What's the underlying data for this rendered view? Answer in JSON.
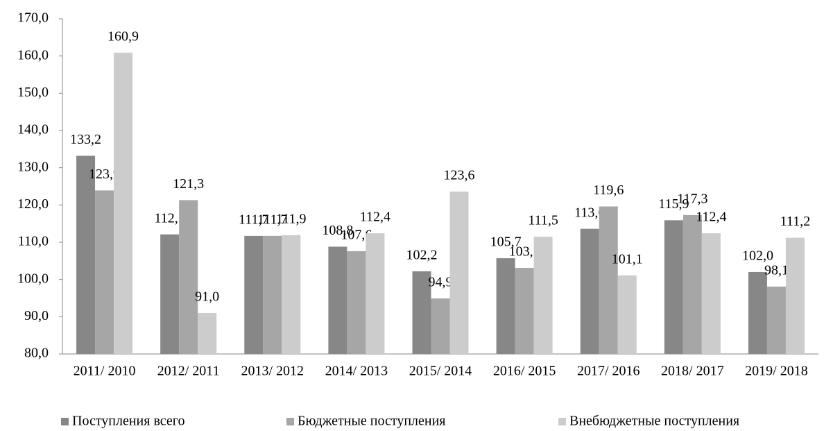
{
  "chart_data": {
    "type": "bar",
    "categories": [
      "2011/ 2010",
      "2012/ 2011",
      "2013/ 2012",
      "2014/ 2013",
      "2015/ 2014",
      "2016/ 2015",
      "2017/ 2016",
      "2018/ 2017",
      "2019/ 2018"
    ],
    "series": [
      {
        "name": "Поступления всего",
        "color": "#878787",
        "values": [
          133.2,
          112.1,
          111.7,
          108.8,
          102.2,
          105.7,
          113.6,
          115.9,
          102.0
        ],
        "value_labels": [
          "133,2",
          "112,1",
          "111,7",
          "108,8",
          "102,2",
          "105,7",
          "113,6",
          "115,9",
          "102,0"
        ]
      },
      {
        "name": "Бюджетные поступления",
        "color": "#a6a6a6",
        "values": [
          123.9,
          121.3,
          111.7,
          107.6,
          94.9,
          103.1,
          119.6,
          117.3,
          98.1
        ],
        "value_labels": [
          "123,9",
          "121,3",
          "111,7",
          "107,6",
          "94,9",
          "103,1",
          "119,6",
          "117,3",
          "98,1"
        ]
      },
      {
        "name": "Внебюджетные поступления",
        "color": "#cccccc",
        "values": [
          160.9,
          91.0,
          111.9,
          112.4,
          123.6,
          111.5,
          101.1,
          112.4,
          111.2
        ],
        "value_labels": [
          "160,9",
          "91,0",
          "111,9",
          "112,4",
          "123,6",
          "111,5",
          "101,1",
          "112,4",
          "111,2"
        ]
      }
    ],
    "ylim": [
      80,
      170
    ],
    "yticks": [
      {
        "value": 80,
        "label": "80,0"
      },
      {
        "value": 90,
        "label": "90,0"
      },
      {
        "value": 100,
        "label": "100,0"
      },
      {
        "value": 110,
        "label": "110,0"
      },
      {
        "value": 120,
        "label": "120,0"
      },
      {
        "value": 130,
        "label": "130,0"
      },
      {
        "value": 140,
        "label": "140,0"
      },
      {
        "value": 150,
        "label": "150,0"
      },
      {
        "value": 160,
        "label": "160,0"
      },
      {
        "value": 170,
        "label": "170,0"
      }
    ],
    "grid": false,
    "legend": "bottom"
  }
}
